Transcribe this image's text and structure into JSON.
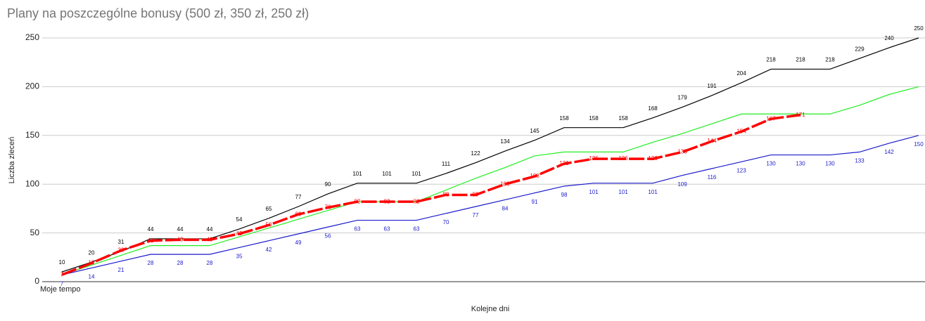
{
  "chart_data": {
    "type": "line",
    "title": "Plany na poszczególne bonusy (500 zł, 350 zł, 250 zł)",
    "y_label": "Liczba zleceń",
    "x_label": "Kolejne dni",
    "categories": [
      "Moje tempo",
      null,
      null,
      null,
      null,
      null,
      null,
      null,
      null,
      null,
      null,
      null,
      null,
      null,
      null,
      null,
      null,
      null,
      null,
      null,
      null,
      null,
      null,
      null,
      null,
      null,
      null,
      null,
      null,
      null
    ],
    "series": [
      {
        "color": "#000000",
        "label_pos": "above",
        "values": [
          10,
          20,
          31,
          44,
          44,
          44,
          54,
          65,
          77,
          90,
          101,
          101,
          101,
          111,
          122,
          134,
          145,
          158,
          158,
          158,
          168,
          179,
          191,
          204,
          218,
          218,
          218,
          229,
          240,
          250
        ]
      },
      {
        "color": "#22ee22",
        "values": [
          7,
          17,
          27,
          37,
          37,
          37,
          46,
          55,
          64,
          73,
          82,
          82,
          82,
          94,
          106,
          117,
          129,
          133,
          133,
          133,
          143,
          152,
          162,
          172,
          172,
          172,
          172,
          181,
          192,
          200
        ]
      },
      {
        "color": "#1a1acc",
        "label_pos": "below",
        "values": [
          7,
          14,
          21,
          28,
          28,
          28,
          35,
          42,
          49,
          56,
          63,
          63,
          63,
          70,
          77,
          84,
          91,
          98,
          101,
          101,
          101,
          109,
          116,
          123,
          130,
          130,
          130,
          133,
          142,
          150
        ]
      },
      {
        "color": "#ff0000",
        "label_pos": "center",
        "width": 3.5,
        "dashed": true,
        "values": [
          7,
          19,
          32,
          42,
          43,
          43,
          49,
          58,
          69,
          76,
          82,
          82,
          82,
          89,
          89,
          100,
          108,
          121,
          126,
          126,
          126,
          133,
          144,
          154,
          167,
          171,
          null,
          null,
          null,
          null
        ]
      }
    ],
    "ylim": [
      0,
      250
    ],
    "yticks": [
      0,
      50,
      100,
      150,
      200,
      250
    ],
    "grid": true
  }
}
